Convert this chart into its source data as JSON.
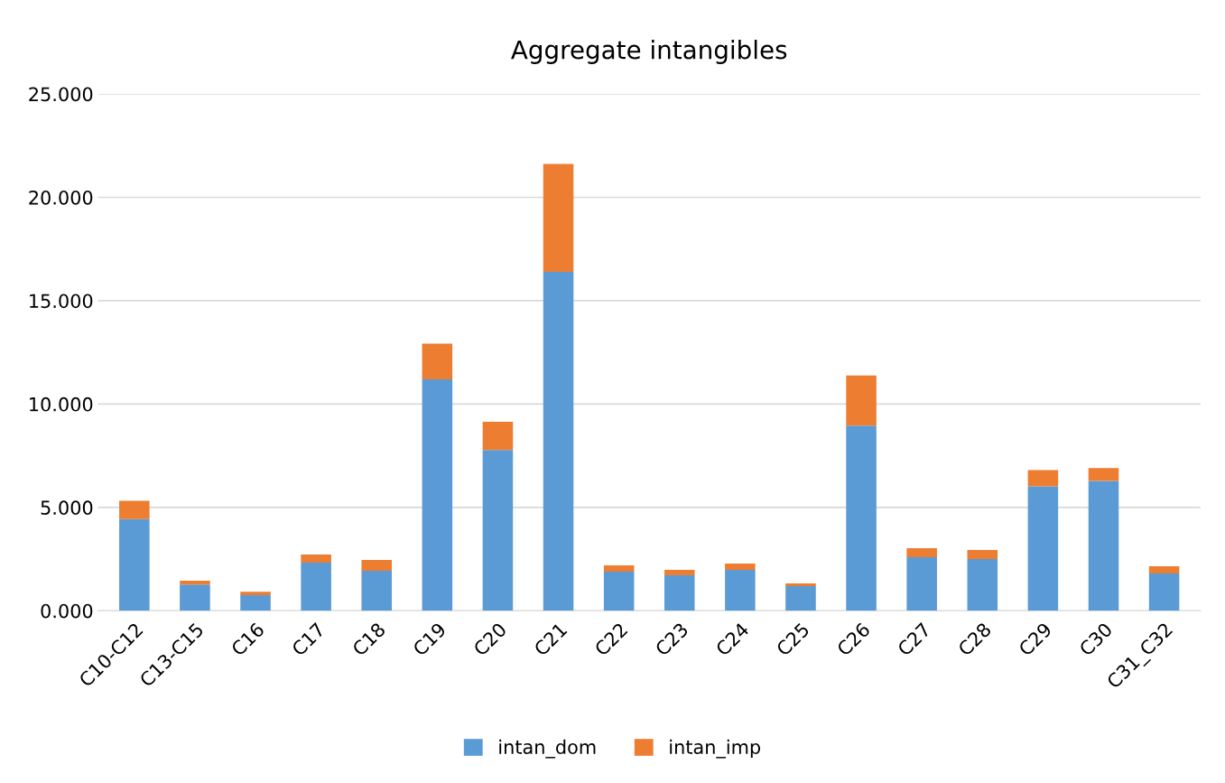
{
  "chart_data": {
    "type": "bar",
    "title": "Aggregate intangibles",
    "stacked": true,
    "categories": [
      "C10-C12",
      "C13-C15",
      "C16",
      "C17",
      "C18",
      "C19",
      "C20",
      "C21",
      "C22",
      "C23",
      "C24",
      "C25",
      "C26",
      "C27",
      "C28",
      "C29",
      "C30",
      "C31_C32"
    ],
    "series": [
      {
        "name": "intan_dom",
        "color": "#5b9bd5",
        "values": [
          4.44,
          1.27,
          0.75,
          2.33,
          1.93,
          11.2,
          7.78,
          16.39,
          1.89,
          1.71,
          1.98,
          1.19,
          8.96,
          2.59,
          2.5,
          6.02,
          6.28,
          1.8
        ]
      },
      {
        "name": "intan_imp",
        "color": "#ed7d31",
        "values": [
          0.88,
          0.18,
          0.17,
          0.39,
          0.53,
          1.72,
          1.36,
          5.23,
          0.31,
          0.27,
          0.3,
          0.13,
          2.42,
          0.44,
          0.44,
          0.79,
          0.62,
          0.35
        ]
      }
    ],
    "ylim": [
      0,
      25
    ],
    "yticks": [
      {
        "value": 0,
        "label": "0.000"
      },
      {
        "value": 5,
        "label": "5.000"
      },
      {
        "value": 10,
        "label": "10.000"
      },
      {
        "value": 15,
        "label": "15.000"
      },
      {
        "value": 20,
        "label": "20.000"
      },
      {
        "value": 25,
        "label": "25.000"
      }
    ],
    "grid": "y",
    "legend": "bottom"
  }
}
